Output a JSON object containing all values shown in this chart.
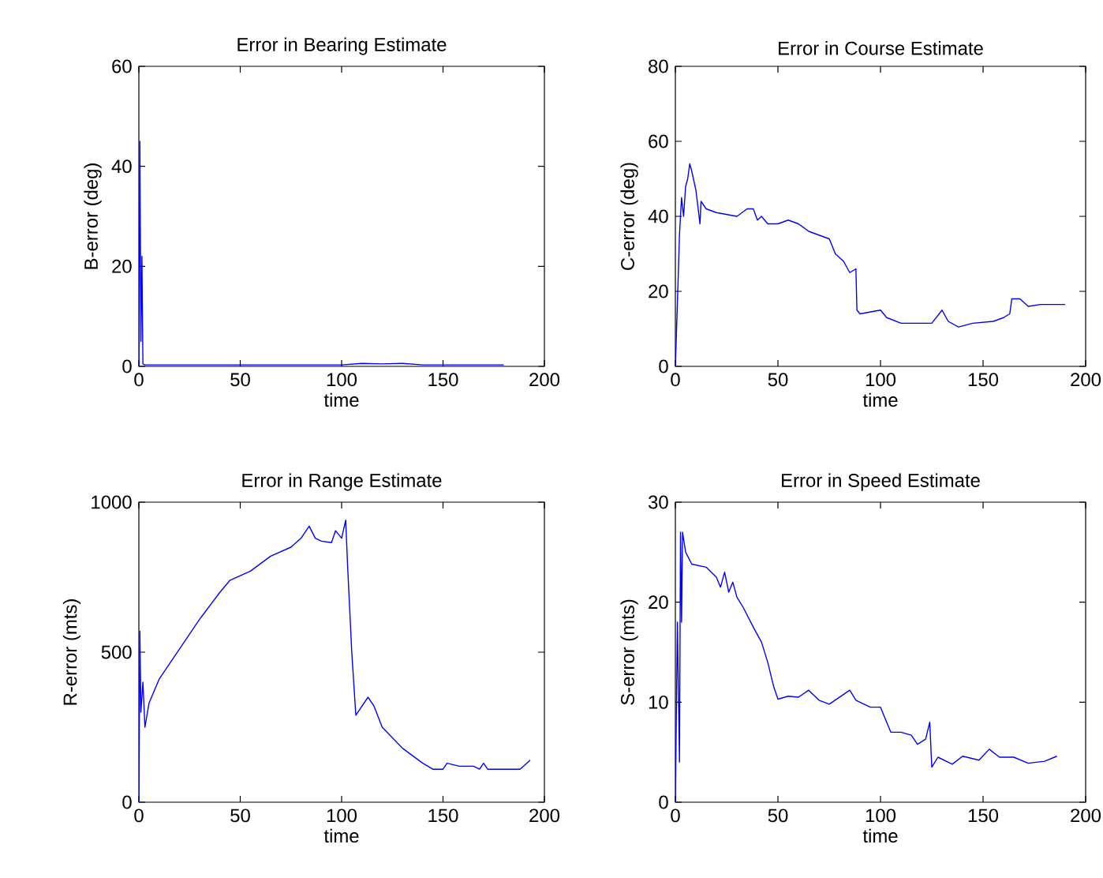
{
  "chart_data": [
    {
      "type": "line",
      "title": "Error in Bearing Estimate",
      "xlabel": "time",
      "ylabel": "B-error (deg)",
      "xlim": [
        0,
        200
      ],
      "xticks": [
        0,
        50,
        100,
        150,
        200
      ],
      "ylim": [
        0,
        60
      ],
      "yticks": [
        0,
        20,
        40,
        60
      ],
      "series": [
        {
          "color": "#0000ff",
          "x": [
            0,
            0.5,
            1,
            1.5,
            2,
            3,
            50,
            100,
            110,
            120,
            130,
            140,
            180
          ],
          "values": [
            0,
            45,
            5,
            22,
            0.5,
            0.3,
            0.3,
            0.3,
            0.6,
            0.5,
            0.6,
            0.3,
            0.3
          ]
        }
      ]
    },
    {
      "type": "line",
      "title": "Error in Course Estimate",
      "xlabel": "time",
      "ylabel": "C-error (deg)",
      "xlim": [
        0,
        200
      ],
      "xticks": [
        0,
        50,
        100,
        150,
        200
      ],
      "ylim": [
        0,
        80
      ],
      "yticks": [
        0,
        20,
        40,
        60,
        80
      ],
      "series": [
        {
          "color": "#0000ff",
          "x": [
            0,
            1,
            2,
            3,
            4,
            5,
            6,
            7,
            8,
            10,
            12,
            12.5,
            15,
            20,
            30,
            35,
            38,
            40,
            42,
            45,
            50,
            55,
            60,
            65,
            70,
            75,
            78,
            82,
            85,
            88,
            88.5,
            90,
            100,
            103,
            110,
            125,
            130,
            133,
            138,
            145,
            155,
            160,
            163,
            164,
            168,
            172,
            178,
            190
          ],
          "values": [
            0,
            17,
            35,
            45,
            40,
            48,
            50,
            54,
            52,
            47,
            38,
            44,
            42,
            41,
            40,
            42,
            42,
            39,
            40,
            38,
            38,
            39,
            38,
            36,
            35,
            34,
            30,
            28,
            25,
            26,
            15,
            14,
            15,
            13,
            11.5,
            11.5,
            15,
            12,
            10.5,
            11.5,
            12,
            13,
            14,
            18,
            18,
            16,
            16.5,
            16.5
          ]
        }
      ]
    },
    {
      "type": "line",
      "title": "Error in Range Estimate",
      "xlabel": "time",
      "ylabel": "R-error (mts)",
      "xlim": [
        0,
        200
      ],
      "xticks": [
        0,
        50,
        100,
        150,
        200
      ],
      "ylim": [
        0,
        1000
      ],
      "yticks": [
        0,
        500,
        1000
      ],
      "series": [
        {
          "color": "#0000ff",
          "x": [
            0,
            0.5,
            1,
            2,
            3,
            5,
            10,
            20,
            30,
            40,
            45,
            55,
            65,
            75,
            80,
            84,
            87,
            90,
            95,
            97,
            100,
            102,
            103,
            105,
            107,
            110,
            113,
            116,
            120,
            130,
            140,
            145,
            150,
            152,
            158,
            165,
            168,
            170,
            172,
            180,
            188,
            193
          ],
          "values": [
            0,
            570,
            300,
            400,
            250,
            330,
            410,
            510,
            610,
            700,
            740,
            770,
            820,
            850,
            880,
            920,
            880,
            870,
            865,
            905,
            880,
            940,
            780,
            500,
            290,
            320,
            350,
            320,
            250,
            180,
            130,
            110,
            110,
            130,
            120,
            120,
            110,
            130,
            110,
            110,
            110,
            140
          ]
        }
      ]
    },
    {
      "type": "line",
      "title": "Error in Speed Estimate",
      "xlabel": "time",
      "ylabel": "S-error (mts)",
      "xlim": [
        0,
        200
      ],
      "xticks": [
        0,
        50,
        100,
        150,
        200
      ],
      "ylim": [
        0,
        30
      ],
      "yticks": [
        0,
        10,
        20,
        30
      ],
      "series": [
        {
          "color": "#0000ff",
          "x": [
            0,
            1,
            2,
            2.5,
            3,
            3.5,
            5,
            8,
            15,
            20,
            22,
            24,
            26,
            28,
            30,
            33,
            38,
            42,
            45,
            48,
            50,
            55,
            60,
            65,
            70,
            75,
            80,
            85,
            88,
            95,
            100,
            103,
            105,
            110,
            115,
            118,
            122,
            124,
            125,
            128,
            135,
            140,
            148,
            153,
            158,
            165,
            172,
            180,
            186
          ],
          "values": [
            0,
            18,
            4,
            27,
            18,
            27,
            25,
            23.8,
            23.5,
            22.5,
            21.5,
            23,
            21,
            22,
            20.5,
            19.5,
            17.5,
            16,
            14,
            11.5,
            10.3,
            10.6,
            10.5,
            11.2,
            10.2,
            9.8,
            10.5,
            11.2,
            10.2,
            9.5,
            9.5,
            8,
            7,
            7,
            6.7,
            5.8,
            6.3,
            8,
            3.5,
            4.5,
            3.8,
            4.6,
            4.2,
            5.3,
            4.5,
            4.5,
            3.9,
            4.1,
            4.6
          ]
        }
      ]
    }
  ]
}
